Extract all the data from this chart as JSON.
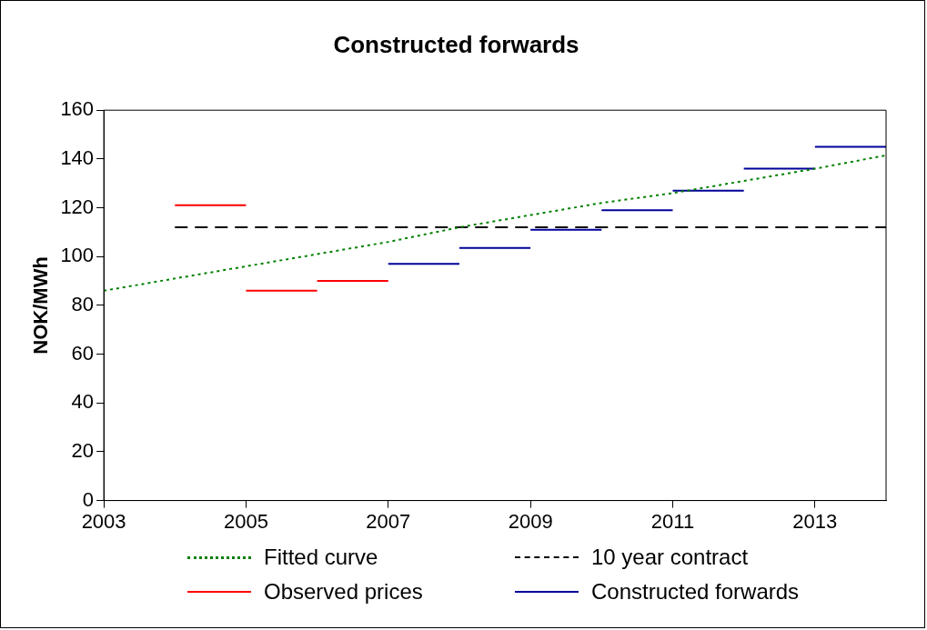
{
  "chart_data": {
    "type": "line",
    "title": "Constructed forwards",
    "ylabel": "NOK/MWh",
    "xlim": [
      2003,
      2014
    ],
    "xticks": [
      2003,
      2005,
      2007,
      2009,
      2011,
      2013
    ],
    "ylim": [
      0,
      160
    ],
    "yticks": [
      0,
      20,
      40,
      60,
      80,
      100,
      120,
      140,
      160
    ],
    "grid": false,
    "legend": "bottom",
    "marker": "none",
    "series": [
      {
        "name": "Fitted curve",
        "color": "#008000",
        "line_style": "dotted",
        "x": [
          2003,
          2004,
          2005,
          2006,
          2007,
          2008,
          2009,
          2010,
          2011,
          2012,
          2013,
          2014
        ],
        "values": [
          86,
          91,
          96,
          101,
          106,
          112,
          117,
          122,
          126,
          131,
          136,
          141.5
        ]
      },
      {
        "name": "10 year contract",
        "color": "#000000",
        "line_style": "dashed",
        "x": [
          2004,
          2014
        ],
        "values": [
          112,
          112
        ]
      },
      {
        "name": "Observed prices",
        "color": "#ff0000",
        "line_style": "solid",
        "x": [
          2004,
          2005,
          2005,
          2006,
          2006,
          2007
        ],
        "values": [
          121,
          121,
          86,
          86,
          90,
          90
        ]
      },
      {
        "name": "Constructed forwards",
        "color": "#000099",
        "line_style": "solid",
        "x": [
          2007,
          2008,
          2008,
          2009,
          2009,
          2010,
          2010,
          2011,
          2011,
          2012,
          2012,
          2013,
          2013,
          2014
        ],
        "values": [
          97,
          97,
          103.5,
          103.5,
          111,
          111,
          119,
          119,
          127,
          127,
          136,
          136,
          145,
          145
        ]
      }
    ]
  }
}
